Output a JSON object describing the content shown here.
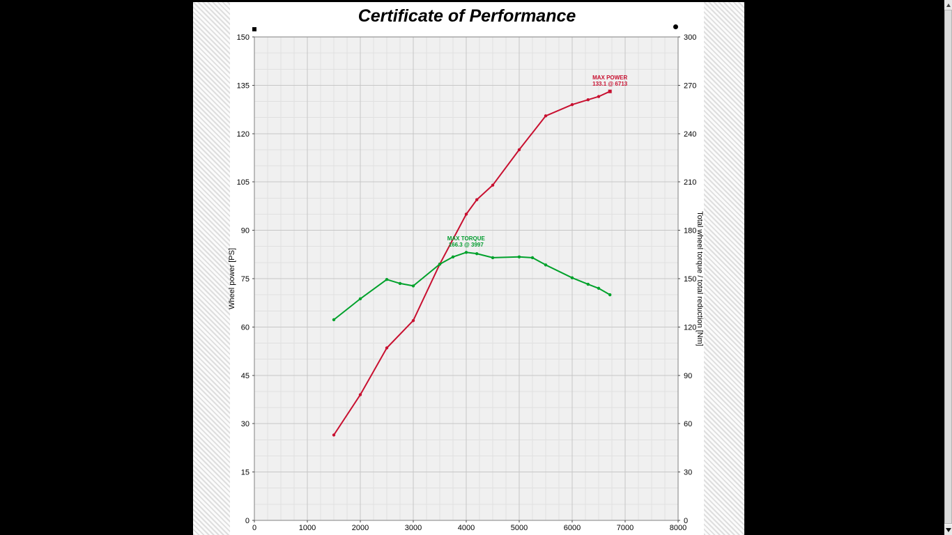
{
  "chart_data": {
    "type": "line",
    "title": "Certificate of Performance",
    "x_axis": {
      "label": "",
      "min": 0,
      "max": 8000,
      "ticks": [
        0,
        1000,
        2000,
        3000,
        4000,
        5000,
        6000,
        7000,
        8000
      ],
      "minor_step": 250
    },
    "left_axis": {
      "label": "Wheel power [PS]",
      "min": 0,
      "max": 150,
      "ticks": [
        0,
        15,
        30,
        45,
        60,
        75,
        90,
        105,
        120,
        135,
        150
      ],
      "minor_step": 5
    },
    "right_axis": {
      "label": "Total wheel torque / total reduction [Nm]",
      "min": 0,
      "max": 300,
      "ticks": [
        0,
        30,
        60,
        90,
        120,
        150,
        180,
        210,
        240,
        270,
        300
      ],
      "minor_step": 10
    },
    "grid": true,
    "legend_position": "none",
    "series": [
      {
        "name": "wheel-power",
        "axis": "left",
        "color": "#c81030",
        "marker": "dot",
        "end_marker": "square",
        "x": [
          1500,
          2000,
          2500,
          3000,
          3500,
          4000,
          4200,
          4500,
          5000,
          5500,
          6000,
          6300,
          6500,
          6713
        ],
        "values": [
          26.5,
          39,
          53.5,
          62,
          79.5,
          95,
          99.5,
          104,
          115,
          125.5,
          129,
          130.5,
          131.5,
          133.1
        ]
      },
      {
        "name": "wheel-torque",
        "axis": "right",
        "color": "#00a12b",
        "marker": "dot",
        "x": [
          1500,
          2000,
          2500,
          2750,
          3000,
          3500,
          3750,
          4000,
          4200,
          4500,
          5000,
          5250,
          5500,
          6000,
          6300,
          6500,
          6713
        ],
        "values": [
          124.5,
          137.5,
          149.5,
          147,
          145.5,
          159,
          163.5,
          166.3,
          165.5,
          163,
          163.5,
          163,
          158.5,
          150.5,
          146.5,
          144,
          140
        ]
      }
    ],
    "annotations": [
      {
        "id": "max-power",
        "line1": "MAX POWER",
        "line2": "133.1 @ 6713",
        "rpm": 6713,
        "value": 133.1,
        "axis": "left",
        "color": "#c81030"
      },
      {
        "id": "max-torque",
        "line1": "MAX TORQUE",
        "line2": "166.3 @ 3997",
        "rpm": 3997,
        "value": 166.3,
        "axis": "right",
        "color": "#009b2d"
      }
    ]
  },
  "decorations": {
    "top_left_mark": "filled-square",
    "top_right_mark": "filled-circle"
  },
  "icons": {
    "scroll_up": "triangle-up",
    "scroll_down": "triangle-down"
  }
}
